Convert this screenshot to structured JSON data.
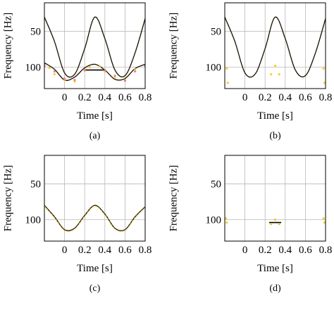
{
  "chart_data": [
    {
      "type": "line",
      "caption": "(a)",
      "xlabel": "Time [s]",
      "ylabel": "Frequency [Hz]",
      "xlim": [
        -0.2,
        0.8
      ],
      "ylim": [
        130,
        10
      ],
      "y_inverted": true,
      "xticks": [
        "0",
        "0.2",
        "0.4",
        "0.6",
        "0.8"
      ],
      "xtick_values": [
        0,
        0.2,
        0.4,
        0.6,
        0.8
      ],
      "yticks": [
        "50",
        "100"
      ],
      "ytick_values": [
        50,
        100
      ],
      "grid": true,
      "series": [
        {
          "role": "upper-sinusoid",
          "color": "#000000",
          "x": [
            -0.2,
            -0.1,
            0.0,
            0.1,
            0.2,
            0.3,
            0.4,
            0.5,
            0.6,
            0.7,
            0.8
          ],
          "y": [
            30,
            64,
            108,
            110,
            74,
            30,
            60,
            104,
            112,
            80,
            32
          ]
        },
        {
          "role": "lower-sinusoid",
          "color": "#000000",
          "x": [
            -0.2,
            -0.1,
            0.0,
            0.1,
            0.2,
            0.3,
            0.4,
            0.5,
            0.6,
            0.7,
            0.8
          ],
          "y": [
            94,
            103,
            118,
            114,
            101,
            96,
            104,
            117,
            116,
            102,
            96
          ]
        },
        {
          "role": "plateau",
          "color": "#000000",
          "x": [
            0.2,
            0.3,
            0.4
          ],
          "y": [
            104,
            104,
            104
          ]
        },
        {
          "role": "yellow-scatter",
          "color": "#f5c400",
          "x": [
            -0.2,
            -0.15,
            -0.1,
            0.0,
            0.1,
            0.2,
            0.25,
            0.35,
            0.4,
            0.5,
            0.6,
            0.7,
            0.8
          ],
          "y": [
            97,
            101,
            110,
            118,
            120,
            105,
            100,
            99,
            106,
            114,
            118,
            103,
            98
          ]
        },
        {
          "role": "pink-scatter",
          "color": "#e66a9a",
          "x": [
            -0.2,
            -0.1,
            0.0,
            0.1,
            0.2,
            0.4,
            0.5,
            0.6,
            0.7,
            0.8
          ],
          "y": [
            98,
            106,
            116,
            118,
            104,
            104,
            112,
            119,
            106,
            98
          ]
        }
      ]
    },
    {
      "type": "line",
      "caption": "(b)",
      "xlabel": "Time [s]",
      "ylabel": "Frequency [Hz]",
      "xlim": [
        -0.2,
        0.8
      ],
      "ylim": [
        130,
        10
      ],
      "y_inverted": true,
      "xticks": [
        "0",
        "0.2",
        "0.4",
        "0.6",
        "0.8"
      ],
      "xtick_values": [
        0,
        0.2,
        0.4,
        0.6,
        0.8
      ],
      "yticks": [
        "50",
        "100"
      ],
      "ytick_values": [
        50,
        100
      ],
      "grid": true,
      "series": [
        {
          "role": "upper-sinusoid",
          "color": "#000000",
          "x": [
            -0.2,
            -0.1,
            0.0,
            0.1,
            0.2,
            0.3,
            0.4,
            0.5,
            0.6,
            0.7,
            0.8
          ],
          "y": [
            30,
            64,
            108,
            110,
            74,
            30,
            60,
            104,
            112,
            80,
            32
          ]
        },
        {
          "role": "yellow-scatter",
          "color": "#f5c400",
          "x": [
            -0.18,
            -0.17,
            0.26,
            0.3,
            0.34,
            0.78,
            0.79
          ],
          "y": [
            102,
            122,
            110,
            98,
            110,
            102,
            122
          ]
        }
      ]
    },
    {
      "type": "line",
      "caption": "(c)",
      "xlabel": "Time [s]",
      "ylabel": "Frequency [Hz]",
      "xlim": [
        -0.2,
        0.8
      ],
      "ylim": [
        130,
        10
      ],
      "y_inverted": true,
      "xticks": [
        "0",
        "0.2",
        "0.4",
        "0.6",
        "0.8"
      ],
      "xtick_values": [
        0,
        0.2,
        0.4,
        0.6,
        0.8
      ],
      "yticks": [
        "50",
        "100"
      ],
      "ytick_values": [
        50,
        100
      ],
      "grid": true,
      "series": [
        {
          "role": "lower-sinusoid",
          "color": "#000000",
          "x": [
            -0.2,
            -0.1,
            0.0,
            0.1,
            0.2,
            0.3,
            0.4,
            0.5,
            0.6,
            0.7,
            0.8
          ],
          "y": [
            80,
            96,
            114,
            112,
            94,
            80,
            92,
            112,
            114,
            96,
            82
          ]
        },
        {
          "role": "yellow-overlay",
          "color": "#f5c400",
          "x": [
            -0.2,
            -0.1,
            0.0,
            0.1,
            0.2,
            0.3,
            0.4,
            0.5,
            0.6,
            0.7,
            0.8
          ],
          "y": [
            81,
            97,
            115,
            113,
            95,
            81,
            93,
            113,
            115,
            97,
            83
          ]
        }
      ]
    },
    {
      "type": "line",
      "caption": "(d)",
      "xlabel": "Time [s]",
      "ylabel": "Frequency [Hz]",
      "xlim": [
        -0.2,
        0.8
      ],
      "ylim": [
        130,
        10
      ],
      "y_inverted": true,
      "xticks": [
        "0",
        "0.2",
        "0.4",
        "0.6",
        "0.8"
      ],
      "xtick_values": [
        0,
        0.2,
        0.4,
        0.6,
        0.8
      ],
      "yticks": [
        "50",
        "100"
      ],
      "ytick_values": [
        50,
        100
      ],
      "grid": true,
      "series": [
        {
          "role": "plateau",
          "color": "#000000",
          "x": [
            0.24,
            0.3,
            0.36
          ],
          "y": [
            104,
            104,
            104
          ]
        },
        {
          "role": "yellow-scatter",
          "color": "#f5c400",
          "x": [
            -0.19,
            -0.18,
            0.26,
            0.3,
            0.34,
            0.78,
            0.79
          ],
          "y": [
            98,
            104,
            106,
            100,
            106,
            98,
            104
          ]
        }
      ]
    }
  ]
}
